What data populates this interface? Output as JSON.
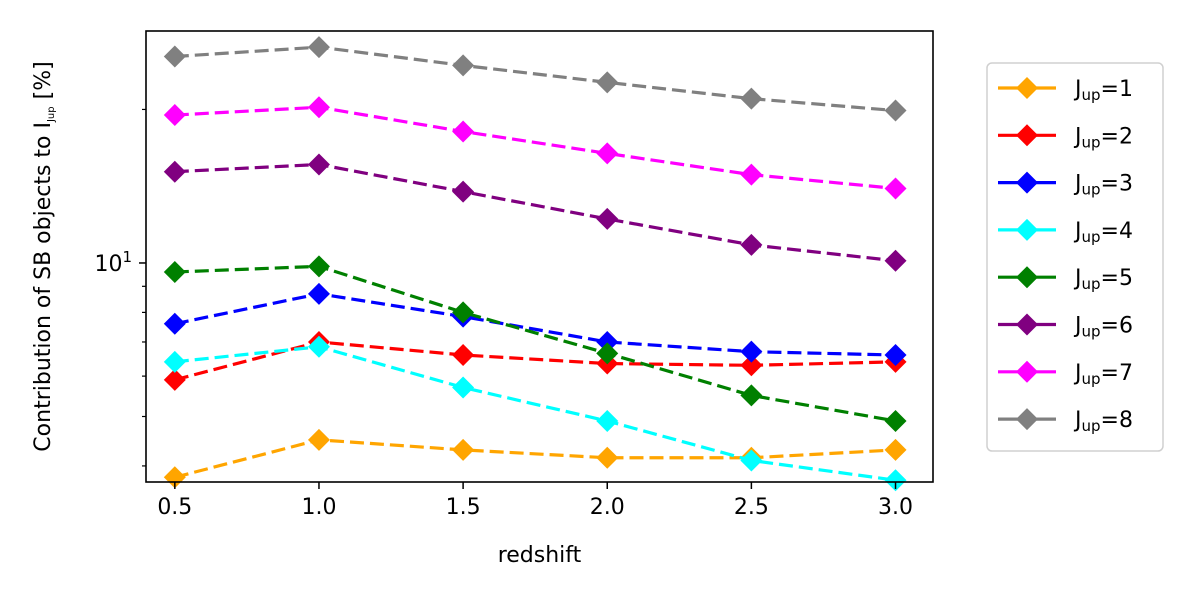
{
  "chart_data": {
    "type": "line",
    "xlabel": "redshift",
    "ylabel": "Contribution of SB objects to I_Jup [%]",
    "ylabel_main": "Contribution of SB objects to I",
    "ylabel_sub": "Jup",
    "ylabel_unit": "[%]",
    "yscale": "log",
    "xlim": [
      0.4,
      3.13
    ],
    "ylim": [
      3.72,
      28.5
    ],
    "x_ticks": [
      0.5,
      1.0,
      1.5,
      2.0,
      2.5,
      3.0
    ],
    "x_tick_labels": [
      "0.5",
      "1.0",
      "1.5",
      "2.0",
      "2.5",
      "3.0"
    ],
    "y_major_ticks": [
      10
    ],
    "y_major_tick_base": "10",
    "y_major_tick_exp": "1",
    "y_minor_ticks": [
      4,
      5,
      6,
      7,
      8,
      9,
      20
    ],
    "grid": false,
    "legend_position": "outside-right",
    "x": [
      0.5,
      1.0,
      1.5,
      2.0,
      2.5,
      3.0
    ],
    "series": [
      {
        "name": "Jup=1",
        "label_main": "J",
        "label_sub": "up",
        "label_suffix": "=1",
        "color": "#ffa500",
        "values": [
          3.8,
          4.5,
          4.3,
          4.15,
          4.15,
          4.3
        ]
      },
      {
        "name": "Jup=2",
        "label_main": "J",
        "label_sub": "up",
        "label_suffix": "=2",
        "color": "#ff0000",
        "values": [
          5.9,
          7.0,
          6.6,
          6.35,
          6.3,
          6.4
        ]
      },
      {
        "name": "Jup=3",
        "label_main": "J",
        "label_sub": "up",
        "label_suffix": "=3",
        "color": "#0000ff",
        "values": [
          7.6,
          8.7,
          7.85,
          7.0,
          6.7,
          6.6
        ]
      },
      {
        "name": "Jup=4",
        "label_main": "J",
        "label_sub": "up",
        "label_suffix": "=4",
        "color": "#00ffff",
        "values": [
          6.4,
          6.85,
          5.7,
          4.9,
          4.1,
          3.75
        ]
      },
      {
        "name": "Jup=5",
        "label_main": "J",
        "label_sub": "up",
        "label_suffix": "=5",
        "color": "#008000",
        "values": [
          9.6,
          9.85,
          8.0,
          6.65,
          5.5,
          4.9
        ]
      },
      {
        "name": "Jup=6",
        "label_main": "J",
        "label_sub": "up",
        "label_suffix": "=6",
        "color": "#800080",
        "values": [
          15.1,
          15.6,
          13.8,
          12.2,
          10.85,
          10.1
        ]
      },
      {
        "name": "Jup=7",
        "label_main": "J",
        "label_sub": "up",
        "label_suffix": "=7",
        "color": "#ff00ff",
        "values": [
          19.5,
          20.2,
          18.1,
          16.4,
          14.9,
          14.0
        ]
      },
      {
        "name": "Jup=8",
        "label_main": "J",
        "label_sub": "up",
        "label_suffix": "=8",
        "color": "#808080",
        "values": [
          25.4,
          26.5,
          24.4,
          22.6,
          21.0,
          19.9
        ]
      }
    ]
  }
}
